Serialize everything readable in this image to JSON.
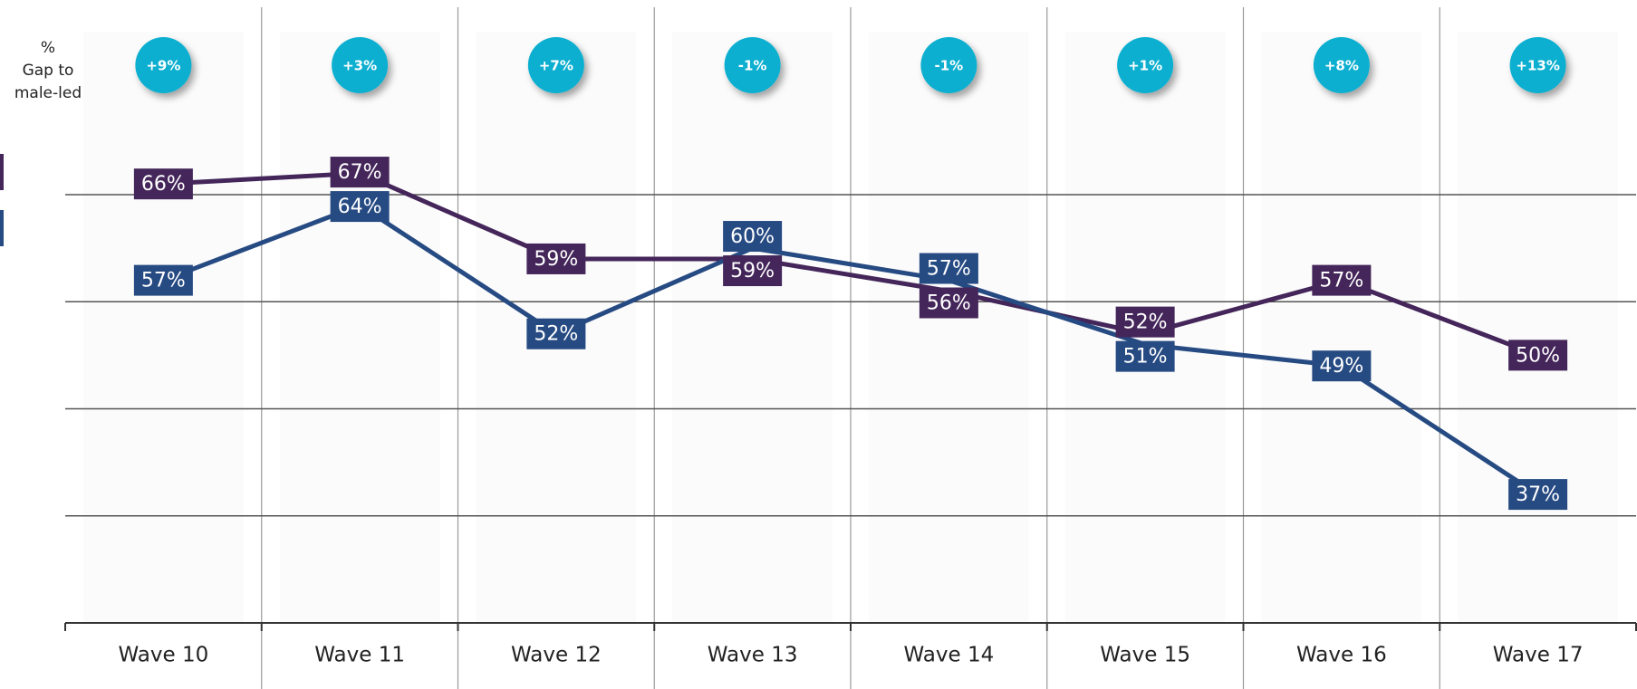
{
  "chart_data": {
    "type": "line",
    "header": [
      "%",
      "Gap to",
      "male-led"
    ],
    "categories": [
      "Wave 10",
      "Wave 11",
      "Wave 12",
      "Wave 13",
      "Wave 14",
      "Wave 15",
      "Wave 16",
      "Wave 17"
    ],
    "gap_labels": [
      "+9%",
      "+3%",
      "+7%",
      "-1%",
      "-1%",
      "+1%",
      "+8%",
      "+13%"
    ],
    "gap_color": "#0aafd0",
    "series": [
      {
        "color": "#44265a",
        "values": [
          66,
          67,
          59,
          59,
          56,
          52,
          57,
          50
        ],
        "value_labels": [
          "66%",
          "67%",
          "59%",
          "59%",
          "56%",
          "52%",
          "57%",
          "50%"
        ]
      },
      {
        "color": "#264a82",
        "values": [
          57,
          64,
          52,
          60,
          57,
          51,
          49,
          37
        ],
        "value_labels": [
          "57%",
          "64%",
          "52%",
          "60%",
          "57%",
          "51%",
          "49%",
          "37%"
        ]
      }
    ],
    "ylim": [
      25,
      65
    ],
    "yticks": [
      25,
      35,
      45,
      55,
      65
    ],
    "grid": true
  }
}
